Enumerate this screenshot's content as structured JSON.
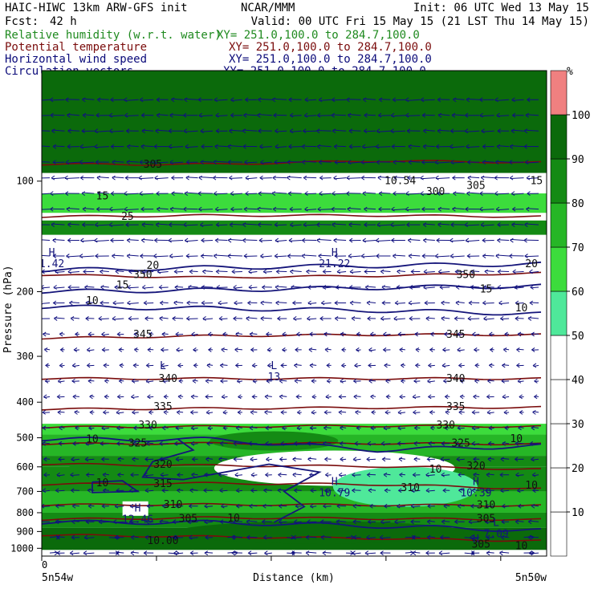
{
  "header": {
    "left_line1": "HAIC-HIWC 13km ARW-GFS init",
    "center_line1": "NCAR/MMM",
    "right_line1": "Init: 06 UTC Wed 13 May 15",
    "fcst_label": "Fcst:",
    "fcst_value": "42 h",
    "valid_line": "Valid: 00 UTC Fri 15 May 15 (21 LST Thu 14 May 15)"
  },
  "fields": [
    {
      "label": "Relative humidity (w.r.t. water)",
      "xy": "XY= 251.0,100.0 to 284.7,100.0",
      "color": "#1f8a1f"
    },
    {
      "label": "Potential temperature",
      "xy": "XY= 251.0,100.0 to 284.7,100.0",
      "color": "#7a0c0c"
    },
    {
      "label": "Horizontal wind speed",
      "xy": "XY= 251.0,100.0 to 284.7,100.0",
      "color": "#0b0b7a"
    },
    {
      "label": "Circulation vectors",
      "xy": "XY= 251.0,100.0 to 284.7,100.0",
      "color": "#0b0b7a"
    }
  ],
  "colors": {
    "theta_contour": "#7a0c0c",
    "wind_contour": "#15157a",
    "vectors": "#101080",
    "rh_levels": [
      "#ffffff",
      "#4fe89a",
      "#3cdc3c",
      "#26b626",
      "#148a14",
      "#0b6a0b",
      "#f08080"
    ]
  },
  "chart_data": {
    "type": "heatmap",
    "ylabel": "Pressure (hPa)",
    "xlabel": "Distance (km)",
    "x_start_label": "5n54w",
    "x_end_label": "5n50w",
    "x_zero_label": "0",
    "ylim": [
      1050,
      50
    ],
    "y_log": true,
    "y_ticks": [
      100,
      200,
      300,
      400,
      500,
      600,
      700,
      800,
      900,
      1000
    ],
    "colorbar": {
      "unit": "%",
      "levels": [
        0,
        10,
        20,
        30,
        40,
        50,
        60,
        70,
        80,
        90,
        100,
        110
      ],
      "labels": [
        "10",
        "20",
        "30",
        "40",
        "50",
        "60",
        "70",
        "80",
        "90",
        "100"
      ]
    },
    "theta_contours": [
      {
        "value": 305,
        "label": "305",
        "p": [
          90,
          90,
          88,
          89
        ]
      },
      {
        "value": 330,
        "label": "330",
        "p": [
          125,
          124,
          124,
          125
        ]
      },
      {
        "value": 350,
        "label": "350",
        "p": [
          180,
          183,
          181,
          178
        ]
      },
      {
        "value": 345,
        "label": "345",
        "p": [
          268,
          264,
          262,
          262
        ]
      },
      {
        "value": 340,
        "label": "340",
        "p": [
          345,
          345,
          345,
          345
        ]
      },
      {
        "value": 335,
        "label": "335",
        "p": [
          418,
          416,
          414,
          413
        ]
      },
      {
        "value": 330,
        "label": "330",
        "p": [
          468,
          466,
          464,
          466
        ]
      },
      {
        "value": 325,
        "label": "325",
        "p": [
          520,
          518,
          518,
          520
        ]
      },
      {
        "value": 320,
        "label": "320",
        "p": [
          590,
          595,
          598,
          610
        ]
      },
      {
        "value": 315,
        "label": "315",
        "p": [
          670,
          665,
          670,
          690
        ]
      },
      {
        "value": 310,
        "label": "310",
        "p": [
          762,
          760,
          762,
          765
        ]
      },
      {
        "value": 305,
        "label": "305",
        "p": [
          835,
          825,
          830,
          835
        ]
      },
      {
        "value": 300,
        "label": "",
        "p": [
          920,
          930,
          940,
          955
        ]
      }
    ],
    "rh_zones": [
      {
        "level": 5,
        "p": [
          50,
          95
        ]
      },
      {
        "level": 2,
        "p": [
          108,
          122
        ]
      },
      {
        "level": 4,
        "p": [
          128,
          140
        ]
      },
      {
        "level": 2,
        "p": [
          458,
          490
        ]
      },
      {
        "level": 3,
        "p": [
          490,
          560
        ]
      },
      {
        "level": 4,
        "p": [
          560,
          600
        ]
      },
      {
        "level": 4,
        "p": [
          600,
          700
        ]
      },
      {
        "level": 3,
        "p": [
          700,
          800
        ]
      },
      {
        "level": 4,
        "p": [
          800,
          880
        ]
      },
      {
        "level": 5,
        "p": [
          880,
          1010
        ]
      }
    ],
    "speed_contours": [
      {
        "label": "20",
        "p": [
          175,
          172,
          170,
          168
        ]
      },
      {
        "label": "15",
        "p": [
          200,
          198,
          195,
          193
        ]
      },
      {
        "label": "10",
        "p": [
          220,
          222,
          225,
          230
        ]
      },
      {
        "label": "10",
        "p": [
          505,
          505,
          540,
          525
        ]
      },
      {
        "label": "10",
        "p": [
          850,
          850,
          870,
          895
        ]
      }
    ],
    "extrema": [
      {
        "type": "H",
        "value": "1.42",
        "x": 0.02,
        "p": 160
      },
      {
        "type": "H",
        "value": "21.22",
        "x": 0.58,
        "p": 160
      },
      {
        "type": "L",
        "value": "",
        "x": 0.24,
        "p": 325
      },
      {
        "type": "L",
        "value": "13",
        "x": 0.46,
        "p": 325
      },
      {
        "type": "H",
        "value": "10.79",
        "x": 0.58,
        "p": 672
      },
      {
        "type": "H",
        "value": "10.39",
        "x": 0.86,
        "p": 672
      },
      {
        "type": "H",
        "value": "12.46",
        "x": 0.19,
        "p": 795
      },
      {
        "type": "L",
        "value": "7.09",
        "x": 0.9,
        "p": 870
      },
      {
        "type": "H",
        "value": "",
        "x": 0.86,
        "p": 965
      }
    ],
    "contour_labels": [
      {
        "text": "305",
        "x": 0.22,
        "p": 90
      },
      {
        "text": "305",
        "x": 0.86,
        "p": 103
      },
      {
        "text": "300",
        "x": 0.78,
        "p": 107
      },
      {
        "text": "10.54",
        "x": 0.71,
        "p": 100
      },
      {
        "text": "15",
        "x": 0.12,
        "p": 110
      },
      {
        "text": "15",
        "x": 0.98,
        "p": 100
      },
      {
        "text": "25",
        "x": 0.17,
        "p": 125
      },
      {
        "text": "350",
        "x": 0.2,
        "p": 180
      },
      {
        "text": "350",
        "x": 0.84,
        "p": 180
      },
      {
        "text": "20",
        "x": 0.97,
        "p": 168
      },
      {
        "text": "15",
        "x": 0.88,
        "p": 197
      },
      {
        "text": "10",
        "x": 0.95,
        "p": 222
      },
      {
        "text": "15",
        "x": 0.16,
        "p": 192
      },
      {
        "text": "10",
        "x": 0.1,
        "p": 212
      },
      {
        "text": "20",
        "x": 0.22,
        "p": 170
      },
      {
        "text": "345",
        "x": 0.2,
        "p": 262
      },
      {
        "text": "345",
        "x": 0.82,
        "p": 262
      },
      {
        "text": "340",
        "x": 0.25,
        "p": 345
      },
      {
        "text": "340",
        "x": 0.82,
        "p": 345
      },
      {
        "text": "335",
        "x": 0.24,
        "p": 412
      },
      {
        "text": "335",
        "x": 0.82,
        "p": 412
      },
      {
        "text": "330",
        "x": 0.21,
        "p": 462
      },
      {
        "text": "330",
        "x": 0.8,
        "p": 462
      },
      {
        "text": "325",
        "x": 0.19,
        "p": 518
      },
      {
        "text": "325",
        "x": 0.83,
        "p": 518
      },
      {
        "text": "10",
        "x": 0.1,
        "p": 505
      },
      {
        "text": "10",
        "x": 0.94,
        "p": 503
      },
      {
        "text": "320",
        "x": 0.24,
        "p": 592
      },
      {
        "text": "320",
        "x": 0.86,
        "p": 598
      },
      {
        "text": "10",
        "x": 0.78,
        "p": 610
      },
      {
        "text": "10",
        "x": 0.12,
        "p": 665
      },
      {
        "text": "315",
        "x": 0.24,
        "p": 668
      },
      {
        "text": "310",
        "x": 0.73,
        "p": 685
      },
      {
        "text": "10",
        "x": 0.97,
        "p": 675
      },
      {
        "text": "310",
        "x": 0.26,
        "p": 760
      },
      {
        "text": "310",
        "x": 0.88,
        "p": 762
      },
      {
        "text": "305",
        "x": 0.29,
        "p": 830
      },
      {
        "text": "305",
        "x": 0.88,
        "p": 830
      },
      {
        "text": "10",
        "x": 0.38,
        "p": 828
      },
      {
        "text": "10.00",
        "x": 0.24,
        "p": 955
      },
      {
        "text": "305",
        "x": 0.87,
        "p": 975
      },
      {
        "text": "10",
        "x": 0.95,
        "p": 985
      }
    ]
  }
}
